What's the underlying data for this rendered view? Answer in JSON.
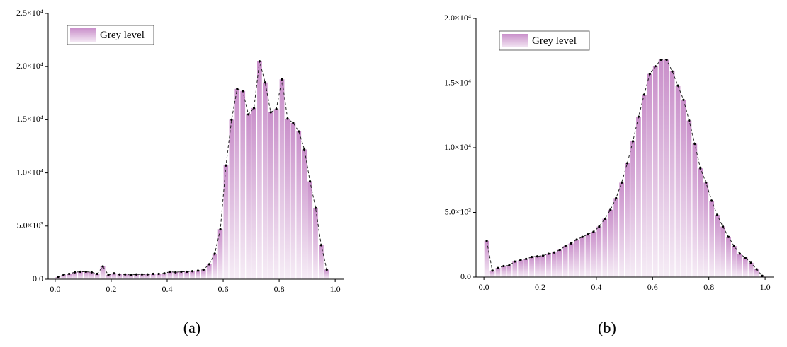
{
  "chart_data": [
    {
      "type": "histogram",
      "caption": "(a)",
      "legend": "Grey level",
      "color": "#c98fca",
      "bins": [
        0,
        0.02,
        0.04,
        0.06,
        0.08,
        0.1,
        0.12,
        0.14,
        0.16,
        0.18,
        0.2,
        0.22,
        0.24,
        0.26,
        0.28,
        0.3,
        0.32,
        0.34,
        0.36,
        0.38,
        0.4,
        0.42,
        0.44,
        0.46,
        0.48,
        0.5,
        0.52,
        0.54,
        0.56,
        0.58,
        0.6,
        0.62,
        0.64,
        0.66,
        0.68,
        0.7,
        0.72,
        0.74,
        0.76,
        0.78,
        0.8,
        0.82,
        0.84,
        0.86,
        0.88,
        0.9,
        0.92,
        0.94,
        0.96,
        0.98
      ],
      "values": [
        200,
        400,
        500,
        650,
        700,
        700,
        650,
        500,
        1200,
        400,
        550,
        450,
        450,
        400,
        450,
        450,
        450,
        500,
        500,
        550,
        700,
        650,
        700,
        700,
        750,
        800,
        900,
        1400,
        2400,
        4700,
        10700,
        15000,
        17900,
        17700,
        15500,
        16100,
        20500,
        18500,
        15700,
        16000,
        18800,
        15100,
        14700,
        13900,
        12200,
        9200,
        6700,
        3200,
        900
      ],
      "xlim": [
        -0.025,
        1.03
      ],
      "ylim": [
        0,
        25000
      ],
      "xticks": [
        {
          "value": 0,
          "label": "0.0"
        },
        {
          "value": 0.2,
          "label": "0.2"
        },
        {
          "value": 0.4,
          "label": "0.4"
        },
        {
          "value": 0.6,
          "label": "0.6"
        },
        {
          "value": 0.8,
          "label": "0.8"
        },
        {
          "value": 1,
          "label": "1.0"
        }
      ],
      "yticks": [
        {
          "value": 0,
          "label": "0.0"
        },
        {
          "value": 5000,
          "label": "5.0×10³"
        },
        {
          "value": 10000,
          "label": "1.0×10⁴"
        },
        {
          "value": 15000,
          "label": "1.5×10⁴"
        },
        {
          "value": 20000,
          "label": "2.0×10⁴"
        },
        {
          "value": 25000,
          "label": "2.5×10⁴"
        }
      ]
    },
    {
      "type": "histogram",
      "caption": "(b)",
      "legend": "Grey level",
      "color": "#c98fca",
      "bins": [
        0,
        0.02,
        0.04,
        0.06,
        0.08,
        0.1,
        0.12,
        0.14,
        0.16,
        0.18,
        0.2,
        0.22,
        0.24,
        0.26,
        0.28,
        0.3,
        0.32,
        0.34,
        0.36,
        0.38,
        0.4,
        0.42,
        0.44,
        0.46,
        0.48,
        0.5,
        0.52,
        0.54,
        0.56,
        0.58,
        0.6,
        0.62,
        0.64,
        0.66,
        0.68,
        0.7,
        0.72,
        0.74,
        0.76,
        0.78,
        0.8,
        0.82,
        0.84,
        0.86,
        0.88,
        0.9,
        0.92,
        0.94,
        0.96,
        0.98,
        1
      ],
      "values": [
        2800,
        500,
        700,
        850,
        900,
        1200,
        1300,
        1400,
        1550,
        1600,
        1650,
        1800,
        1900,
        2100,
        2400,
        2600,
        2900,
        3100,
        3300,
        3500,
        3900,
        4500,
        5200,
        6100,
        7300,
        8800,
        10500,
        12400,
        14100,
        15700,
        16300,
        16800,
        16800,
        15900,
        14800,
        13700,
        12100,
        10300,
        8400,
        7300,
        5900,
        4800,
        3900,
        3100,
        2400,
        1800,
        1500,
        1100,
        600,
        100
      ],
      "xlim": [
        -0.028,
        1.03
      ],
      "ylim": [
        0,
        20000
      ],
      "xticks": [
        {
          "value": 0,
          "label": "0.0"
        },
        {
          "value": 0.2,
          "label": "0.2"
        },
        {
          "value": 0.4,
          "label": "0.4"
        },
        {
          "value": 0.6,
          "label": "0.6"
        },
        {
          "value": 0.8,
          "label": "0.8"
        },
        {
          "value": 1,
          "label": "1.0"
        }
      ],
      "yticks": [
        {
          "value": 0,
          "label": "0.0"
        },
        {
          "value": 5000,
          "label": "5.0×10³"
        },
        {
          "value": 10000,
          "label": "1.0×10⁴"
        },
        {
          "value": 15000,
          "label": "1.5×10⁴"
        },
        {
          "value": 20000,
          "label": "2.0×10⁴"
        }
      ]
    }
  ]
}
